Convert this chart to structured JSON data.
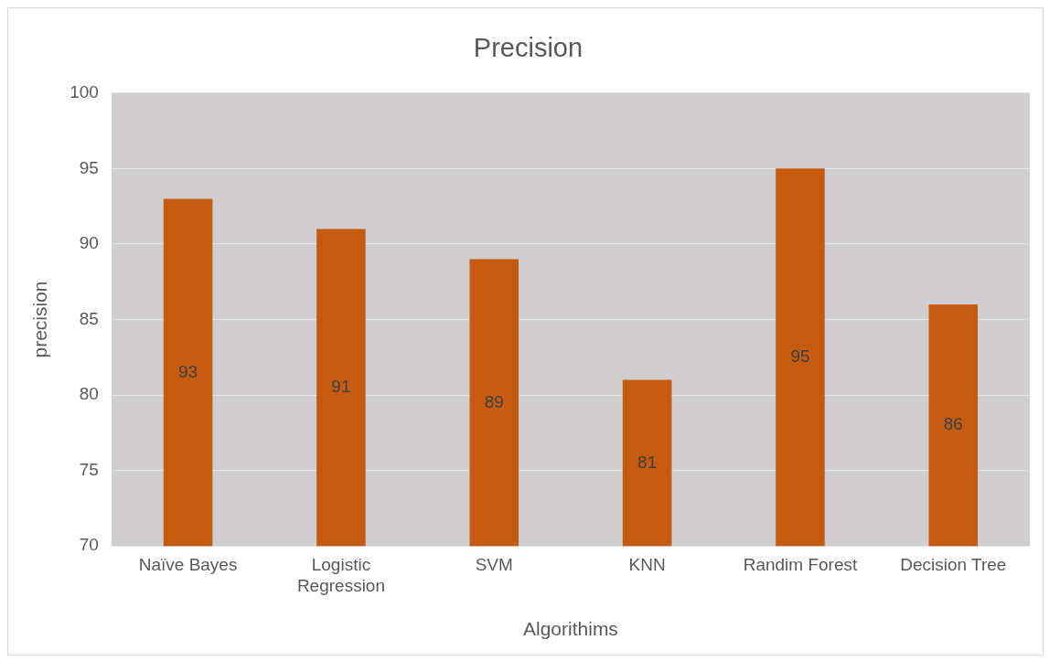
{
  "chart_data": {
    "type": "bar",
    "title": "Precision",
    "xlabel": "Algorithims",
    "ylabel": "precision",
    "categories": [
      "Naïve Bayes",
      "Logistic Regression",
      "SVM",
      "KNN",
      "Randim Forest",
      "Decision Tree"
    ],
    "values": [
      93,
      91,
      89,
      81,
      95,
      86
    ],
    "color": "#c55a11",
    "ylim": [
      70,
      100
    ],
    "yticks": [
      70,
      75,
      80,
      85,
      90,
      95,
      100
    ],
    "grid": "y",
    "legend": false,
    "data_labels": true
  }
}
